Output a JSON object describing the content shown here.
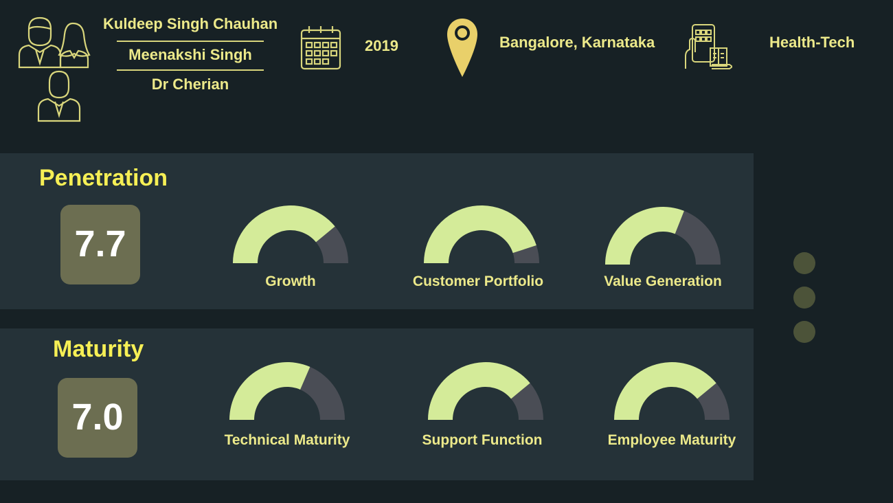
{
  "header": {
    "founders": [
      "Kuldeep Singh Chauhan",
      "Meenakshi Singh",
      "Dr Cherian"
    ],
    "year": "2019",
    "location": "Bangalore, Karnataka",
    "sector": "Health-Tech",
    "icons": [
      "founders-icon",
      "calendar-icon",
      "location-pin-icon",
      "tech-devices-icon"
    ]
  },
  "sections": [
    {
      "title": "Penetration",
      "score": "7.7",
      "gauges": [
        {
          "label": "Growth",
          "value": 0.78
        },
        {
          "label": "Customer Portfolio",
          "value": 0.9
        },
        {
          "label": "Value Generation",
          "value": 0.62
        }
      ]
    },
    {
      "title": "Maturity",
      "score": "7.0",
      "gauges": [
        {
          "label": "Technical Maturity",
          "value": 0.63
        },
        {
          "label": "Support Function",
          "value": 0.78
        },
        {
          "label": "Employee Maturity",
          "value": 0.78
        }
      ]
    }
  ],
  "pager": {
    "count": 3
  },
  "colors": {
    "background": "#172125",
    "panel": "#253238",
    "accent_text": "#ece98a",
    "title_yellow": "#f6ef55",
    "gauge_fill": "#d4eb99",
    "gauge_track": "#4a4d55",
    "score_box": "#6c6e51"
  }
}
